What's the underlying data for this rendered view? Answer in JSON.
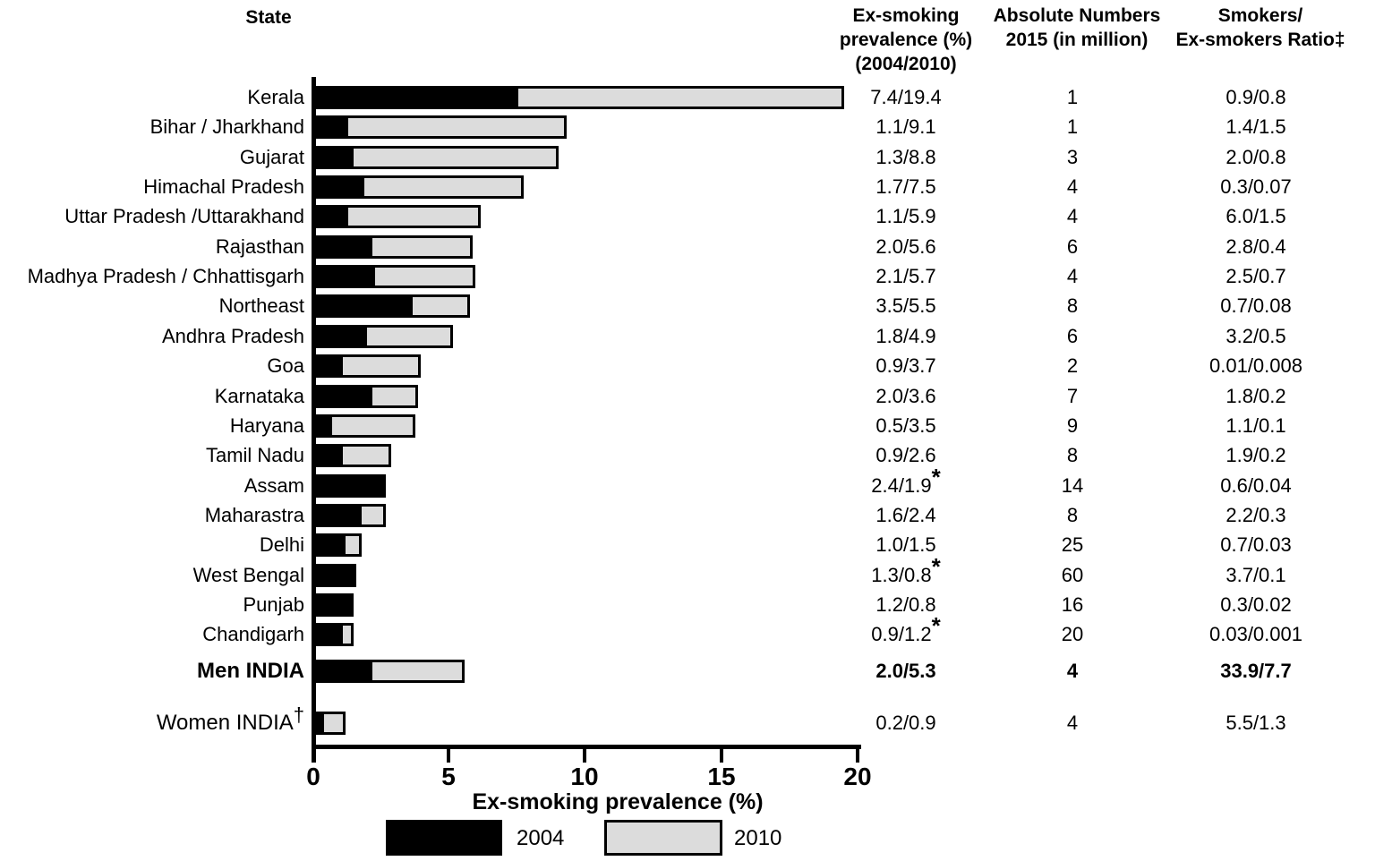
{
  "header": {
    "state": "State",
    "prevalence": [
      "Ex-smoking",
      "prevalence (%)",
      "(2004/2010)"
    ],
    "absolute": [
      "Absolute Numbers",
      "2015 (in million)"
    ],
    "ratio": [
      "Smokers/",
      "Ex-smokers Ratio‡"
    ]
  },
  "axis": {
    "tick_labels": [
      "0",
      "5",
      "10",
      "15",
      "20"
    ],
    "title": "Ex-smoking prevalence (%)",
    "min": 0,
    "max": 20
  },
  "legend": {
    "items": [
      {
        "label": "2004",
        "color": "#000000"
      },
      {
        "label": "2010",
        "color": "#dcdcdc"
      }
    ]
  },
  "rows": [
    {
      "label": "Kerala",
      "sup": "",
      "bold": false,
      "v2004": 7.4,
      "v2010": 19.4,
      "prev": "7.4/19.4",
      "star": false,
      "abs": "1",
      "ratio": "0.9/0.8"
    },
    {
      "label": "Bihar / Jharkhand",
      "sup": "",
      "bold": false,
      "v2004": 1.1,
      "v2010": 9.1,
      "prev": "1.1/9.1",
      "star": false,
      "abs": "1",
      "ratio": "1.4/1.5"
    },
    {
      "label": "Gujarat",
      "sup": "",
      "bold": false,
      "v2004": 1.3,
      "v2010": 8.8,
      "prev": "1.3/8.8",
      "star": false,
      "abs": "3",
      "ratio": "2.0/0.8"
    },
    {
      "label": "Himachal Pradesh",
      "sup": "",
      "bold": false,
      "v2004": 1.7,
      "v2010": 7.5,
      "prev": "1.7/7.5",
      "star": false,
      "abs": "4",
      "ratio": "0.3/0.07"
    },
    {
      "label": "Uttar Pradesh /Uttarakhand",
      "sup": "",
      "bold": false,
      "v2004": 1.1,
      "v2010": 5.9,
      "prev": "1.1/5.9",
      "star": false,
      "abs": "4",
      "ratio": "6.0/1.5"
    },
    {
      "label": "Rajasthan",
      "sup": "",
      "bold": false,
      "v2004": 2.0,
      "v2010": 5.6,
      "prev": "2.0/5.6",
      "star": false,
      "abs": "6",
      "ratio": "2.8/0.4"
    },
    {
      "label": "Madhya Pradesh / Chhattisgarh",
      "sup": "",
      "bold": false,
      "v2004": 2.1,
      "v2010": 5.7,
      "prev": "2.1/5.7",
      "star": false,
      "abs": "4",
      "ratio": "2.5/0.7"
    },
    {
      "label": "Northeast",
      "sup": "",
      "bold": false,
      "v2004": 3.5,
      "v2010": 5.5,
      "prev": "3.5/5.5",
      "star": false,
      "abs": "8",
      "ratio": "0.7/0.08"
    },
    {
      "label": "Andhra Pradesh",
      "sup": "",
      "bold": false,
      "v2004": 1.8,
      "v2010": 4.9,
      "prev": "1.8/4.9",
      "star": false,
      "abs": "6",
      "ratio": "3.2/0.5"
    },
    {
      "label": "Goa",
      "sup": "",
      "bold": false,
      "v2004": 0.9,
      "v2010": 3.7,
      "prev": "0.9/3.7",
      "star": false,
      "abs": "2",
      "ratio": "0.01/0.008"
    },
    {
      "label": "Karnataka",
      "sup": "",
      "bold": false,
      "v2004": 2.0,
      "v2010": 3.6,
      "prev": "2.0/3.6",
      "star": false,
      "abs": "7",
      "ratio": "1.8/0.2"
    },
    {
      "label": "Haryana",
      "sup": "",
      "bold": false,
      "v2004": 0.5,
      "v2010": 3.5,
      "prev": "0.5/3.5",
      "star": false,
      "abs": "9",
      "ratio": "1.1/0.1"
    },
    {
      "label": "Tamil Nadu",
      "sup": "",
      "bold": false,
      "v2004": 0.9,
      "v2010": 2.6,
      "prev": "0.9/2.6",
      "star": false,
      "abs": "8",
      "ratio": "1.9/0.2"
    },
    {
      "label": "Assam",
      "sup": "",
      "bold": false,
      "v2004": 2.4,
      "v2010": 1.9,
      "prev": "2.4/1.9",
      "star": true,
      "abs": "14",
      "ratio": "0.6/0.04"
    },
    {
      "label": "Maharastra",
      "sup": "",
      "bold": false,
      "v2004": 1.6,
      "v2010": 2.4,
      "prev": "1.6/2.4",
      "star": false,
      "abs": "8",
      "ratio": "2.2/0.3"
    },
    {
      "label": "Delhi",
      "sup": "",
      "bold": false,
      "v2004": 1.0,
      "v2010": 1.5,
      "prev": "1.0/1.5",
      "star": false,
      "abs": "25",
      "ratio": "0.7/0.03"
    },
    {
      "label": "West Bengal",
      "sup": "",
      "bold": false,
      "v2004": 1.3,
      "v2010": 0.8,
      "prev": "1.3/0.8",
      "star": true,
      "abs": "60",
      "ratio": "3.7/0.1"
    },
    {
      "label": "Punjab",
      "sup": "",
      "bold": false,
      "v2004": 1.2,
      "v2010": 0.8,
      "prev": "1.2/0.8",
      "star": false,
      "abs": "16",
      "ratio": "0.3/0.02"
    },
    {
      "label": "Chandigarh",
      "sup": "",
      "bold": false,
      "v2004": 0.9,
      "v2010": 1.2,
      "prev": "0.9/1.2",
      "star": true,
      "abs": "20",
      "ratio": "0.03/0.001"
    },
    {
      "label": "Men INDIA",
      "sup": "",
      "bold": true,
      "v2004": 2.0,
      "v2010": 5.3,
      "prev": "2.0/5.3",
      "star": false,
      "abs": "4",
      "ratio": "33.9/7.7"
    },
    {
      "label": "Women INDIA",
      "sup": "†",
      "bold": false,
      "v2004": 0.2,
      "v2010": 0.9,
      "prev": "0.2/0.9",
      "star": false,
      "abs": "4",
      "ratio": "5.5/1.3"
    }
  ],
  "chart_data": {
    "type": "bar",
    "orientation": "horizontal",
    "title": "",
    "xlabel": "Ex-smoking prevalence (%)",
    "ylabel": "State",
    "xlim": [
      0,
      20
    ],
    "grid": false,
    "legend_position": "bottom",
    "categories": [
      "Kerala",
      "Bihar / Jharkhand",
      "Gujarat",
      "Himachal Pradesh",
      "Uttar Pradesh /Uttarakhand",
      "Rajasthan",
      "Madhya Pradesh / Chhattisgarh",
      "Northeast",
      "Andhra Pradesh",
      "Goa",
      "Karnataka",
      "Haryana",
      "Tamil Nadu",
      "Assam",
      "Maharastra",
      "Delhi",
      "West Bengal",
      "Punjab",
      "Chandigarh",
      "Men INDIA",
      "Women INDIA†"
    ],
    "series": [
      {
        "name": "2004",
        "color": "#000000",
        "values": [
          7.4,
          1.1,
          1.3,
          1.7,
          1.1,
          2.0,
          2.1,
          3.5,
          1.8,
          0.9,
          2.0,
          0.5,
          0.9,
          2.4,
          1.6,
          1.0,
          1.3,
          1.2,
          0.9,
          2.0,
          0.2
        ]
      },
      {
        "name": "2010",
        "color": "#dcdcdc",
        "values": [
          19.4,
          9.1,
          8.8,
          7.5,
          5.9,
          5.6,
          5.7,
          5.5,
          4.9,
          3.7,
          3.6,
          3.5,
          2.6,
          1.9,
          2.4,
          1.5,
          0.8,
          0.8,
          1.2,
          5.3,
          0.9
        ]
      }
    ],
    "annotations": {
      "asterisk_marked_rows": [
        "Assam",
        "West Bengal",
        "Chandigarh"
      ],
      "dagger_marked_rows": [
        "Women INDIA"
      ],
      "double_dagger_column": "Smokers/Ex-smokers Ratio"
    },
    "table": {
      "columns": [
        "Ex-smoking prevalence (%) (2004/2010)",
        "Absolute Numbers 2015 (in million)",
        "Smokers/Ex-smokers Ratio‡"
      ],
      "prevalence": [
        "7.4/19.4",
        "1.1/9.1",
        "1.3/8.8",
        "1.7/7.5",
        "1.1/5.9",
        "2.0/5.6",
        "2.1/5.7",
        "3.5/5.5",
        "1.8/4.9",
        "0.9/3.7",
        "2.0/3.6",
        "0.5/3.5",
        "0.9/2.6",
        "2.4/1.9*",
        "1.6/2.4",
        "1.0/1.5",
        "1.3/0.8*",
        "1.2/0.8",
        "0.9/1.2*",
        "2.0/5.3",
        "0.2/0.9"
      ],
      "absolute_numbers": [
        1,
        1,
        3,
        4,
        4,
        6,
        4,
        8,
        6,
        2,
        7,
        9,
        8,
        14,
        8,
        25,
        60,
        16,
        20,
        4,
        4
      ],
      "smokers_exsmokers_ratio": [
        "0.9/0.8",
        "1.4/1.5",
        "2.0/0.8",
        "0.3/0.07",
        "6.0/1.5",
        "2.8/0.4",
        "2.5/0.7",
        "0.7/0.08",
        "3.2/0.5",
        "0.01/0.008",
        "1.8/0.2",
        "1.1/0.1",
        "1.9/0.2",
        "0.6/0.04",
        "2.2/0.3",
        "0.7/0.03",
        "3.7/0.1",
        "0.3/0.02",
        "0.03/0.001",
        "33.9/7.7",
        "5.5/1.3"
      ]
    }
  }
}
